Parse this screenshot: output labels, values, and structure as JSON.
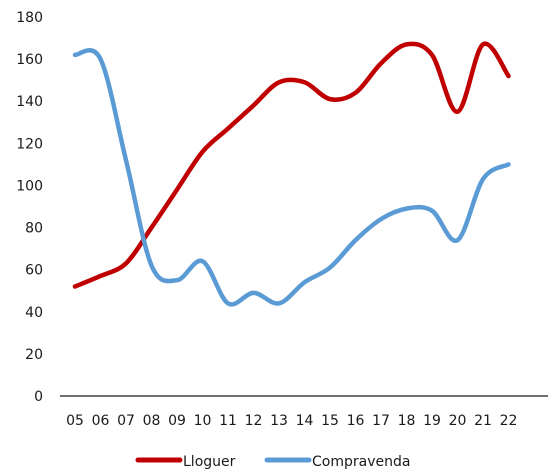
{
  "chart_data": {
    "type": "line",
    "x": [
      "05",
      "06",
      "07",
      "08",
      "09",
      "10",
      "11",
      "12",
      "13",
      "14",
      "15",
      "16",
      "17",
      "18",
      "19",
      "20",
      "21",
      "22"
    ],
    "yticks": [
      0,
      20,
      40,
      60,
      80,
      100,
      120,
      140,
      160,
      180
    ],
    "ylim": [
      0,
      180
    ],
    "grid": false,
    "legend": "bottom-center",
    "series": [
      {
        "name": "Lloguer",
        "color": "#c00000",
        "values": [
          52,
          57,
          63,
          80,
          98,
          116,
          127,
          138,
          149,
          149,
          141,
          144,
          158,
          167,
          162,
          135,
          167,
          152
        ]
      },
      {
        "name": "Compravenda",
        "color": "#5b9bd5",
        "values": [
          162,
          160,
          112,
          62,
          55,
          64,
          44,
          49,
          44,
          54,
          61,
          74,
          84,
          89,
          88,
          74,
          103,
          110
        ]
      }
    ]
  }
}
